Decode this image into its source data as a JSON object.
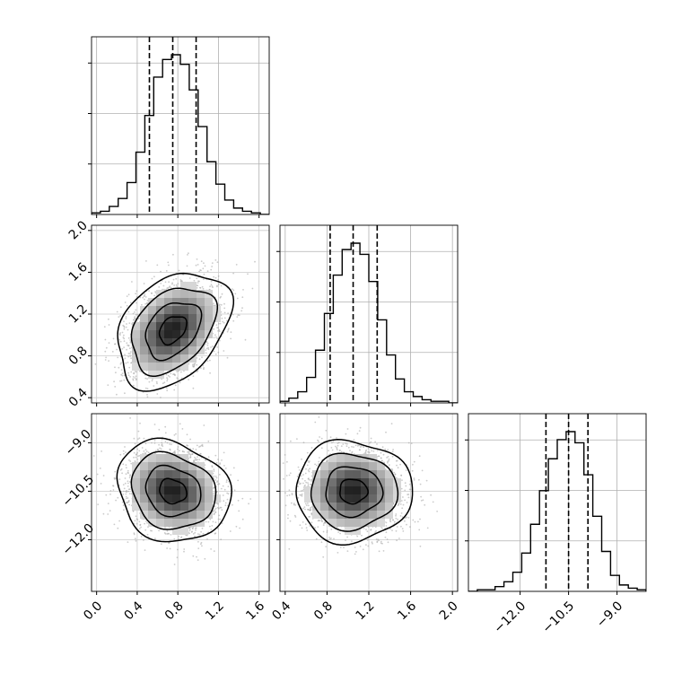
{
  "chart_data": {
    "type": "corner",
    "grid": true,
    "xlabel": "",
    "ylabel": "",
    "parameters": [
      {
        "range": [
          -0.05,
          1.7
        ],
        "ticks": [
          0.0,
          0.4,
          0.8,
          1.2,
          1.6
        ],
        "tick_labels": [
          "0.0",
          "0.4",
          "0.8",
          "1.2",
          "1.6"
        ],
        "quantiles": [
          0.52,
          0.75,
          0.98
        ],
        "histogram": {
          "start": -0.05,
          "width": 0.0875,
          "counts": [
            0.01,
            0.02,
            0.05,
            0.1,
            0.2,
            0.39,
            0.62,
            0.86,
            0.97,
            1.0,
            0.94,
            0.78,
            0.55,
            0.33,
            0.19,
            0.09,
            0.04,
            0.02,
            0.01,
            0.0
          ]
        }
      },
      {
        "range": [
          0.35,
          2.05
        ],
        "ticks": [
          0.4,
          0.8,
          1.2,
          1.6,
          2.0
        ],
        "tick_labels": [
          "0.4",
          "0.8",
          "1.2",
          "1.6",
          "2.0"
        ],
        "quantiles": [
          0.83,
          1.05,
          1.28
        ],
        "histogram": {
          "start": 0.35,
          "width": 0.085,
          "counts": [
            0.01,
            0.03,
            0.07,
            0.16,
            0.33,
            0.56,
            0.8,
            0.96,
            1.0,
            0.93,
            0.76,
            0.52,
            0.3,
            0.15,
            0.07,
            0.04,
            0.02,
            0.01,
            0.01,
            0.0
          ]
        }
      },
      {
        "range": [
          -13.6,
          -8.1
        ],
        "ticks": [
          -12.0,
          -10.5,
          -9.0
        ],
        "tick_labels": [
          "−12.0",
          "−10.5",
          "−9.0"
        ],
        "quantiles": [
          -11.2,
          -10.5,
          -9.9
        ],
        "histogram": {
          "start": -13.6,
          "width": 0.275,
          "counts": [
            0.0,
            0.01,
            0.01,
            0.03,
            0.06,
            0.12,
            0.24,
            0.42,
            0.63,
            0.83,
            0.95,
            1.0,
            0.93,
            0.73,
            0.47,
            0.25,
            0.1,
            0.04,
            0.02,
            0.01
          ]
        }
      }
    ],
    "joint": [
      {
        "x": 0,
        "y": 1,
        "center": [
          0.75,
          1.05
        ],
        "sd": [
          0.23,
          0.23
        ],
        "rho": 0.35,
        "contours": [
          {
            "level": 0.5,
            "r": 0.58
          },
          {
            "level": 1.0,
            "r": 1.18
          },
          {
            "level": 1.5,
            "r": 1.8
          },
          {
            "level": 2.0,
            "r": 2.42
          }
        ]
      },
      {
        "x": 0,
        "y": 2,
        "center": [
          0.75,
          -10.5
        ],
        "sd": [
          0.23,
          0.65
        ],
        "rho": -0.15,
        "contours": [
          {
            "level": 0.5,
            "r": 0.58
          },
          {
            "level": 1.0,
            "r": 1.18
          },
          {
            "level": 1.5,
            "r": 1.8
          },
          {
            "level": 2.0,
            "r": 2.42
          }
        ]
      },
      {
        "x": 1,
        "y": 2,
        "center": [
          1.05,
          -10.5
        ],
        "sd": [
          0.23,
          0.65
        ],
        "rho": 0.0,
        "contours": [
          {
            "level": 0.5,
            "r": 0.58
          },
          {
            "level": 1.0,
            "r": 1.18
          },
          {
            "level": 1.5,
            "r": 1.8
          },
          {
            "level": 2.0,
            "r": 2.42
          }
        ]
      }
    ]
  }
}
